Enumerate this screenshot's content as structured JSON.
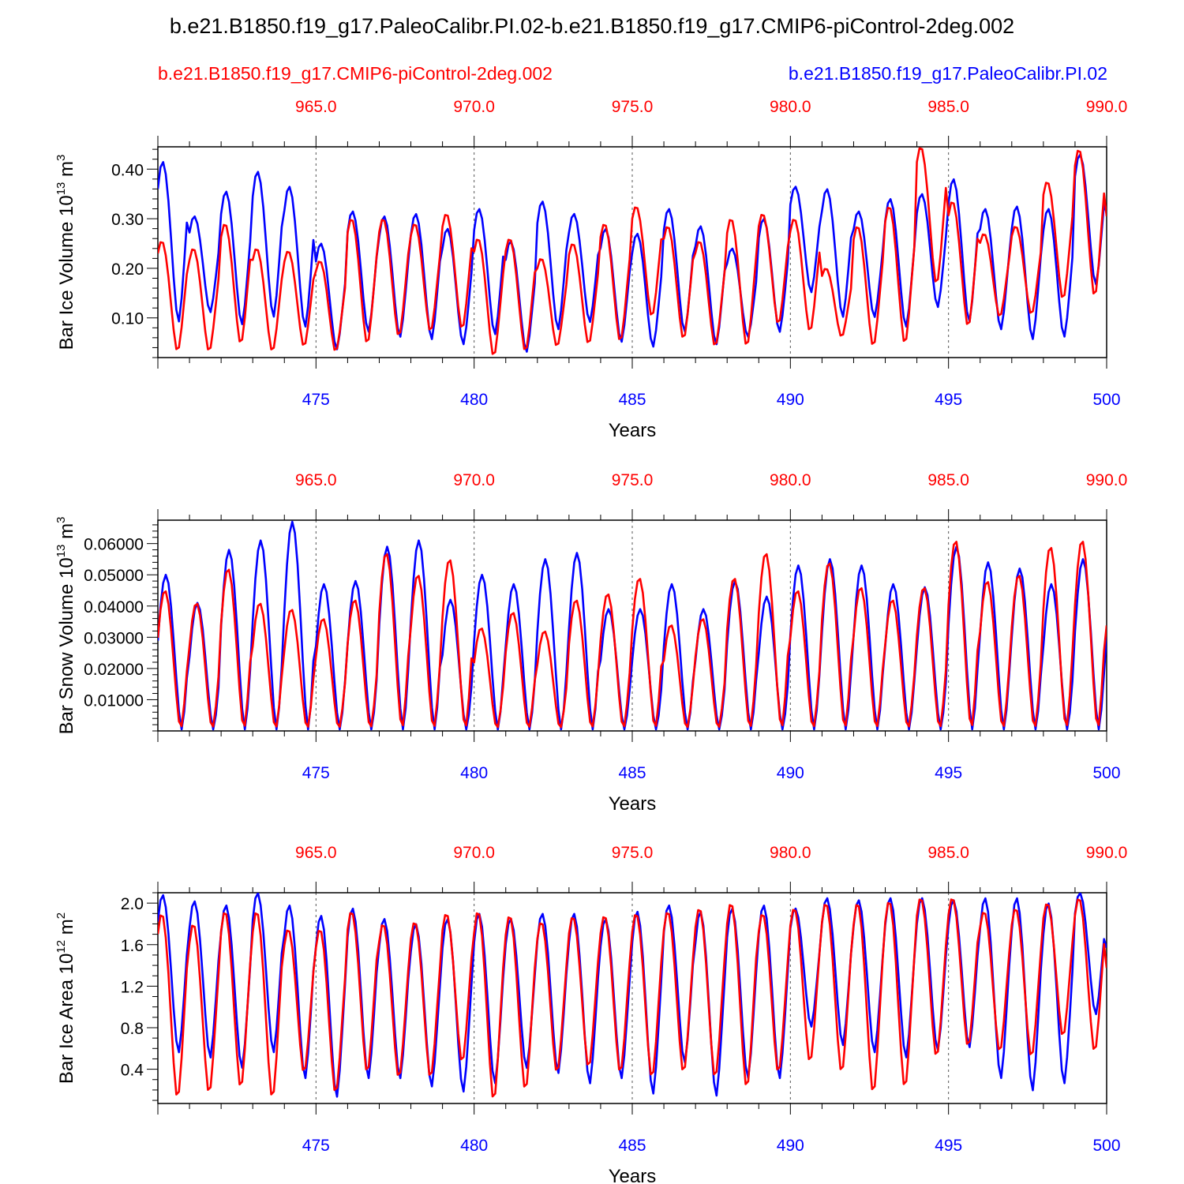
{
  "title": "b.e21.B1850.f19_g17.PaleoCalibr.PI.02-b.e21.B1850.f19_g17.CMIP6-piControl-2deg.002",
  "legend": {
    "control_label": "b.e21.B1850.f19_g17.CMIP6-piControl-2deg.002",
    "experiment_label": "b.e21.B1850.f19_g17.PaleoCalibr.PI.02"
  },
  "colors": {
    "control": "#ff0000",
    "experiment": "#0000ff",
    "axis": "#000000"
  },
  "chart_data": [
    {
      "type": "line",
      "ylabel": "Bar Ice Volume 10",
      "ylabel_exp": "13",
      "ylabel_unit": " m",
      "ylabel_unit_exp": "3",
      "xlabel": "Years",
      "ylim": [
        0.02,
        0.445
      ],
      "yticks": [
        0.1,
        0.2,
        0.3,
        0.4
      ],
      "ytick_labels": [
        "0.10",
        "0.20",
        "0.30",
        "0.40"
      ],
      "yminor": 0.02,
      "xlim_bottom": [
        470.0,
        500.0
      ],
      "xticks_bottom": [
        475,
        480,
        485,
        490,
        495,
        500
      ],
      "xlim_top": [
        960.0,
        990.0
      ],
      "xticks_top": [
        "965.0",
        "970.0",
        "975.0",
        "980.0",
        "985.0",
        "990.0"
      ],
      "series": [
        {
          "name": "b.e21.B1850.f19_g17.PaleoCalibr.PI.02",
          "color": "#0000ff",
          "peaks": [
            0.415,
            0.305,
            0.355,
            0.395,
            0.365,
            0.25,
            0.315,
            0.305,
            0.31,
            0.28,
            0.32,
            0.255,
            0.335,
            0.31,
            0.28,
            0.27,
            0.32,
            0.285,
            0.24,
            0.3,
            0.365,
            0.36,
            0.315,
            0.34,
            0.35,
            0.38,
            0.32,
            0.325,
            0.32,
            0.43
          ],
          "troughs": [
            0.09,
            0.11,
            0.085,
            0.1,
            0.08,
            0.035,
            0.07,
            0.06,
            0.055,
            0.045,
            0.065,
            0.03,
            0.075,
            0.09,
            0.05,
            0.04,
            0.07,
            0.045,
            0.06,
            0.07,
            0.15,
            0.1,
            0.1,
            0.08,
            0.12,
            0.09,
            0.075,
            0.055,
            0.06,
            0.165
          ]
        },
        {
          "name": "b.e21.B1850.f19_g17.CMIP6-piControl-2deg.002",
          "color": "#ff0000",
          "peaks": [
            0.255,
            0.24,
            0.29,
            0.24,
            0.235,
            0.215,
            0.3,
            0.3,
            0.29,
            0.31,
            0.26,
            0.26,
            0.22,
            0.25,
            0.29,
            0.325,
            0.285,
            0.255,
            0.3,
            0.31,
            0.3,
            0.2,
            0.285,
            0.325,
            0.445,
            0.335,
            0.27,
            0.285,
            0.375,
            0.44
          ],
          "troughs": [
            0.03,
            0.03,
            0.045,
            0.03,
            0.04,
            0.03,
            0.045,
            0.06,
            0.07,
            0.075,
            0.02,
            0.03,
            0.04,
            0.045,
            0.05,
            0.1,
            0.055,
            0.04,
            0.04,
            0.085,
            0.07,
            0.06,
            0.04,
            0.045,
            0.165,
            0.08,
            0.1,
            0.105,
            0.135,
            0.14
          ]
        }
      ]
    },
    {
      "type": "line",
      "ylabel": "Bar Snow Volume 10",
      "ylabel_exp": "13",
      "ylabel_unit": " m",
      "ylabel_unit_exp": "3",
      "xlabel": "Years",
      "ylim": [
        0.0,
        0.0675
      ],
      "yticks": [
        0.01,
        0.02,
        0.03,
        0.04,
        0.05,
        0.06
      ],
      "ytick_labels": [
        "0.01000",
        "0.02000",
        "0.03000",
        "0.04000",
        "0.05000",
        "0.06000"
      ],
      "yminor": 0.002,
      "xlim_bottom": [
        470.0,
        500.0
      ],
      "xticks_bottom": [
        475,
        480,
        485,
        490,
        495,
        500
      ],
      "xlim_top": [
        960.0,
        990.0
      ],
      "xticks_top": [
        "965.0",
        "970.0",
        "975.0",
        "980.0",
        "985.0",
        "990.0"
      ],
      "series": [
        {
          "name": "b.e21.B1850.f19_g17.PaleoCalibr.PI.02",
          "color": "#0000ff",
          "peaks": [
            0.05,
            0.041,
            0.058,
            0.061,
            0.067,
            0.047,
            0.048,
            0.059,
            0.061,
            0.042,
            0.05,
            0.047,
            0.055,
            0.057,
            0.039,
            0.039,
            0.047,
            0.039,
            0.048,
            0.043,
            0.053,
            0.055,
            0.053,
            0.047,
            0.046,
            0.059,
            0.054,
            0.052,
            0.047,
            0.055
          ],
          "troughs": [
            0.0005,
            0.0005,
            0.0005,
            0.0005,
            0.0005,
            0.0005,
            0.0005,
            0.0005,
            0.0005,
            0.0005,
            0.0005,
            0.0005,
            0.0005,
            0.0005,
            0.0005,
            0.0005,
            0.0005,
            0.0005,
            0.0005,
            0.0005,
            0.0005,
            0.0005,
            0.0005,
            0.0005,
            0.0005,
            0.0005,
            0.0005,
            0.0005,
            0.0005,
            0.0005
          ]
        },
        {
          "name": "b.e21.B1850.f19_g17.CMIP6-piControl-2deg.002",
          "color": "#ff0000",
          "peaks": [
            0.045,
            0.041,
            0.052,
            0.041,
            0.039,
            0.036,
            0.042,
            0.057,
            0.05,
            0.055,
            0.033,
            0.038,
            0.032,
            0.042,
            0.044,
            0.049,
            0.034,
            0.036,
            0.049,
            0.057,
            0.045,
            0.054,
            0.046,
            0.042,
            0.046,
            0.061,
            0.048,
            0.05,
            0.059,
            0.061
          ],
          "troughs": [
            0.0005,
            0.0005,
            0.0005,
            0.0005,
            0.0005,
            0.0005,
            0.0005,
            0.0005,
            0.0005,
            0.0005,
            0.0005,
            0.0005,
            0.0005,
            0.0005,
            0.0005,
            0.0005,
            0.0005,
            0.0005,
            0.0005,
            0.0005,
            0.0005,
            0.0005,
            0.0005,
            0.0005,
            0.0005,
            0.0005,
            0.0005,
            0.0005,
            0.0005,
            0.0005
          ]
        }
      ]
    },
    {
      "type": "line",
      "ylabel": "Bar Ice Area 10",
      "ylabel_exp": "12",
      "ylabel_unit": " m",
      "ylabel_unit_exp": "2",
      "xlabel": "Years",
      "ylim": [
        0.07,
        2.1
      ],
      "yticks": [
        0.4,
        0.8,
        1.2,
        1.6,
        2.0
      ],
      "ytick_labels": [
        "0.4",
        "0.8",
        "1.2",
        "1.6",
        "2.0"
      ],
      "yminor": 0.1,
      "xlim_bottom": [
        470.0,
        500.0
      ],
      "xticks_bottom": [
        475,
        480,
        485,
        490,
        495,
        500
      ],
      "xlim_top": [
        960.0,
        990.0
      ],
      "xticks_top": [
        "965.0",
        "970.0",
        "975.0",
        "980.0",
        "985.0",
        "990.0"
      ],
      "series": [
        {
          "name": "b.e21.B1850.f19_g17.PaleoCalibr.PI.02",
          "color": "#0000ff",
          "peaks": [
            2.08,
            2.02,
            1.98,
            2.1,
            1.98,
            1.88,
            1.95,
            1.85,
            1.8,
            1.85,
            1.9,
            1.85,
            1.9,
            1.9,
            1.85,
            1.92,
            1.98,
            1.92,
            1.95,
            1.98,
            1.95,
            2.05,
            2.03,
            2.05,
            2.05,
            2.03,
            2.05,
            2.05,
            2.0,
            2.1
          ],
          "troughs": [
            0.55,
            0.5,
            0.4,
            0.55,
            0.3,
            0.12,
            0.3,
            0.3,
            0.22,
            0.17,
            0.25,
            0.4,
            0.35,
            0.25,
            0.3,
            0.15,
            0.45,
            0.13,
            0.3,
            0.3,
            0.8,
            0.62,
            0.55,
            0.5,
            0.57,
            0.6,
            0.3,
            0.18,
            0.25,
            0.92
          ]
        },
        {
          "name": "b.e21.B1850.f19_g17.CMIP6-piControl-2deg.002",
          "color": "#ff0000",
          "peaks": [
            1.9,
            1.8,
            1.92,
            1.92,
            1.75,
            1.75,
            1.92,
            1.8,
            1.82,
            1.9,
            1.92,
            1.88,
            1.82,
            1.87,
            1.88,
            1.9,
            1.92,
            1.95,
            2.0,
            1.9,
            1.95,
            2.0,
            2.0,
            2.02,
            2.05,
            2.05,
            1.92,
            1.95,
            2.0,
            2.05
          ],
          "troughs": [
            0.1,
            0.15,
            0.2,
            0.1,
            0.35,
            0.15,
            0.35,
            0.3,
            0.3,
            0.45,
            0.08,
            0.18,
            0.35,
            0.4,
            0.35,
            0.3,
            0.35,
            0.3,
            0.2,
            0.35,
            0.45,
            0.35,
            0.15,
            0.2,
            0.5,
            0.6,
            0.55,
            0.5,
            0.7,
            0.55
          ]
        }
      ]
    }
  ]
}
